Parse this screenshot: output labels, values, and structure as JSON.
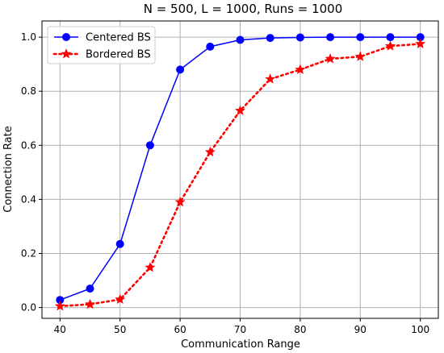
{
  "chart_data": {
    "type": "line",
    "title": "N = 500, L = 1000, Runs = 1000",
    "xlabel": "Communication Range",
    "ylabel": "Connection Rate",
    "xlim": [
      37,
      103
    ],
    "ylim": [
      -0.04,
      1.06
    ],
    "xticks": [
      40,
      50,
      60,
      70,
      80,
      90,
      100
    ],
    "xtick_labels": [
      "40",
      "50",
      "60",
      "70",
      "80",
      "90",
      "100"
    ],
    "yticks": [
      0.0,
      0.2,
      0.4,
      0.6,
      0.8,
      1.0
    ],
    "ytick_labels": [
      "0.0",
      "0.2",
      "0.4",
      "0.6",
      "0.8",
      "1.0"
    ],
    "grid": true,
    "legend_position": "upper-left",
    "x": [
      40,
      45,
      50,
      55,
      60,
      65,
      70,
      75,
      80,
      85,
      90,
      95,
      100
    ],
    "series": [
      {
        "name": "Centered BS",
        "color": "#0000ff",
        "line_style": "solid",
        "marker": "circle",
        "values": [
          0.028,
          0.07,
          0.235,
          0.6,
          0.88,
          0.965,
          0.99,
          0.997,
          0.999,
          1.0,
          1.0,
          1.0,
          1.0
        ]
      },
      {
        "name": "Bordered BS",
        "color": "#ff0000",
        "line_style": "dotted",
        "marker": "star",
        "values": [
          0.005,
          0.012,
          0.03,
          0.148,
          0.39,
          0.575,
          0.728,
          0.845,
          0.88,
          0.92,
          0.928,
          0.967,
          0.975
        ]
      }
    ]
  }
}
